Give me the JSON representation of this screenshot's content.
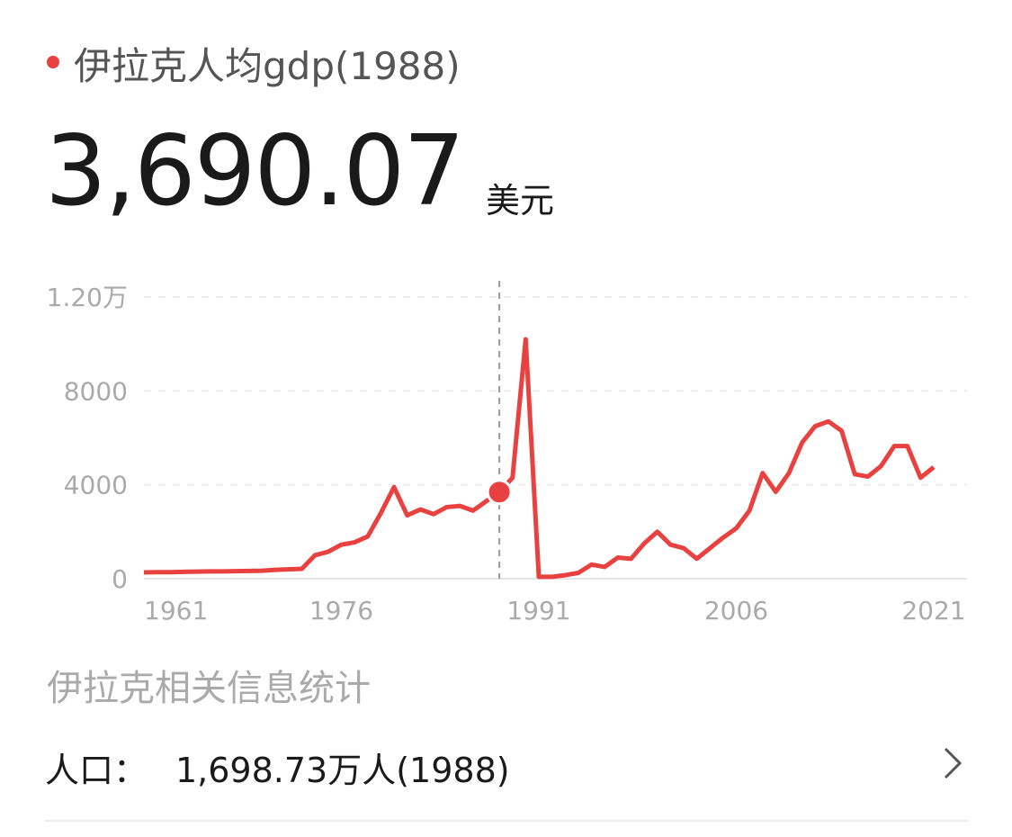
{
  "header": {
    "title": "伊拉克人均gdp(1988)",
    "value": "3,690.07",
    "unit": "美元"
  },
  "chart_data": {
    "type": "line",
    "x": [
      1961,
      1962,
      1963,
      1964,
      1965,
      1966,
      1967,
      1968,
      1969,
      1970,
      1971,
      1972,
      1973,
      1974,
      1975,
      1976,
      1977,
      1978,
      1979,
      1980,
      1981,
      1982,
      1983,
      1984,
      1985,
      1986,
      1987,
      1988,
      1989,
      1990,
      1991,
      1992,
      1993,
      1994,
      1995,
      1996,
      1997,
      1998,
      1999,
      2000,
      2001,
      2002,
      2003,
      2004,
      2005,
      2006,
      2007,
      2008,
      2009,
      2010,
      2011,
      2012,
      2013,
      2014,
      2015,
      2016,
      2017,
      2018,
      2019,
      2020,
      2021
    ],
    "series": [
      {
        "color": "#e8413f",
        "values": [
          270,
          280,
          280,
          290,
          300,
          310,
          310,
          320,
          330,
          340,
          380,
          400,
          420,
          1000,
          1150,
          1450,
          1550,
          1800,
          2800,
          3900,
          2700,
          2950,
          2750,
          3050,
          3100,
          2900,
          3300,
          3690.07,
          4300,
          10200,
          80,
          80,
          150,
          250,
          600,
          500,
          900,
          850,
          1500,
          2000,
          1450,
          1300,
          850,
          1300,
          1750,
          2150,
          2900,
          4500,
          3700,
          4500,
          5800,
          6500,
          6700,
          6300,
          4450,
          4350,
          4800,
          5650,
          5650,
          4300,
          4750
        ]
      }
    ],
    "selected_x": 1988,
    "xlim": [
      1961,
      2021
    ],
    "xticks": [
      1961,
      1976,
      1991,
      2006,
      2021
    ],
    "ylim": [
      0,
      12000
    ],
    "yticks": [
      0,
      4000,
      8000,
      {
        "value": 12000,
        "label": "1.20万"
      }
    ],
    "grid": true
  },
  "section": {
    "title": "伊拉克相关信息统计"
  },
  "row": {
    "label": "人口：",
    "value": "1,698.73万人(1988)"
  }
}
